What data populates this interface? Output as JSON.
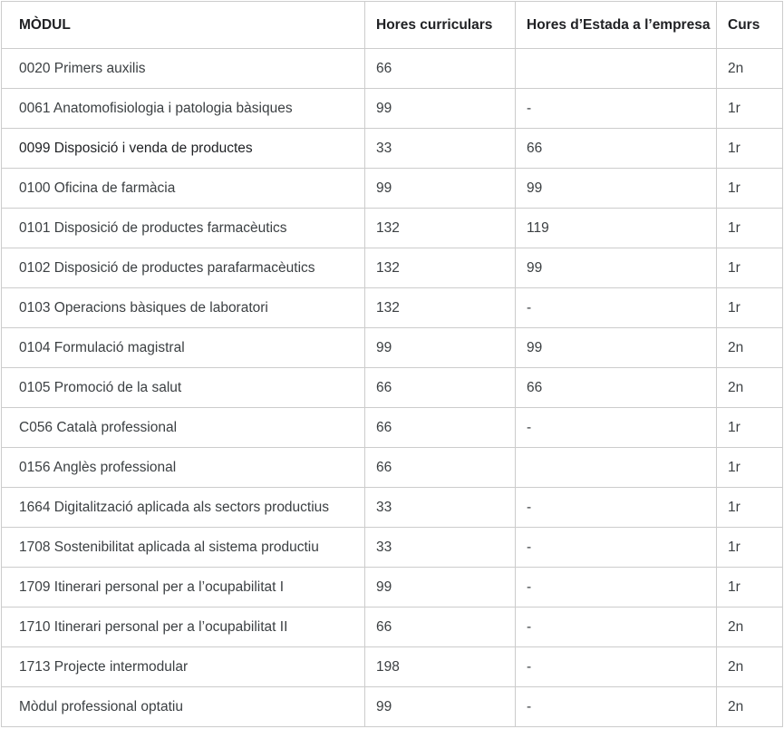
{
  "table": {
    "columns": [
      {
        "key": "modul",
        "label": "MÒDUL"
      },
      {
        "key": "hores",
        "label": "Hores curriculars"
      },
      {
        "key": "estada",
        "label": "Hores d’Estada a l’empresa"
      },
      {
        "key": "curs",
        "label": "Curs"
      }
    ],
    "rows": [
      {
        "modul": "0020 Primers auxilis",
        "hores": "66",
        "estada": "",
        "curs": "2n"
      },
      {
        "modul": "0061 Anatomofisiologia i patologia bàsiques",
        "hores": "99",
        "estada": "-",
        "curs": "1r"
      },
      {
        "modul": "0099 Disposició i venda de productes",
        "hores": "33",
        "estada": "66",
        "curs": "1r",
        "emphasis": true
      },
      {
        "modul": "0100 Oficina de farmàcia",
        "hores": "99",
        "estada": "99",
        "curs": "1r"
      },
      {
        "modul": "0101 Disposició de productes farmacèutics",
        "hores": "132",
        "estada": "119",
        "curs": "1r"
      },
      {
        "modul": "0102 Disposició de productes parafarmacèutics",
        "hores": "132",
        "estada": "99",
        "curs": "1r"
      },
      {
        "modul": "0103 Operacions bàsiques de laboratori",
        "hores": "132",
        "estada": "-",
        "curs": "1r"
      },
      {
        "modul": "0104 Formulació magistral",
        "hores": "99",
        "estada": "99",
        "curs": "2n"
      },
      {
        "modul": "0105 Promoció de la salut",
        "hores": "66",
        "estada": "66",
        "curs": "2n"
      },
      {
        "modul": "C056 Català professional",
        "hores": "66",
        "estada": "-",
        "curs": "1r"
      },
      {
        "modul": "0156 Anglès professional",
        "hores": "66",
        "estada": "",
        "curs": "1r"
      },
      {
        "modul": "1664 Digitalització aplicada als sectors productius",
        "hores": "33",
        "estada": "-",
        "curs": "1r"
      },
      {
        "modul": "1708 Sostenibilitat aplicada al sistema productiu",
        "hores": "33",
        "estada": "-",
        "curs": "1r"
      },
      {
        "modul": "1709 Itinerari personal per a l’ocupabilitat I",
        "hores": "99",
        "estada": "-",
        "curs": "1r"
      },
      {
        "modul": "1710 Itinerari personal per a l’ocupabilitat II",
        "hores": "66",
        "estada": "-",
        "curs": "2n"
      },
      {
        "modul": "1713 Projecte intermodular",
        "hores": "198",
        "estada": "-",
        "curs": "2n"
      },
      {
        "modul": "Mòdul professional optatiu",
        "hores": "99",
        "estada": "-",
        "curs": "2n"
      }
    ]
  },
  "colors": {
    "border": "#cccccc",
    "text": "#3c4043",
    "header_text": "#202124",
    "background": "#ffffff"
  }
}
